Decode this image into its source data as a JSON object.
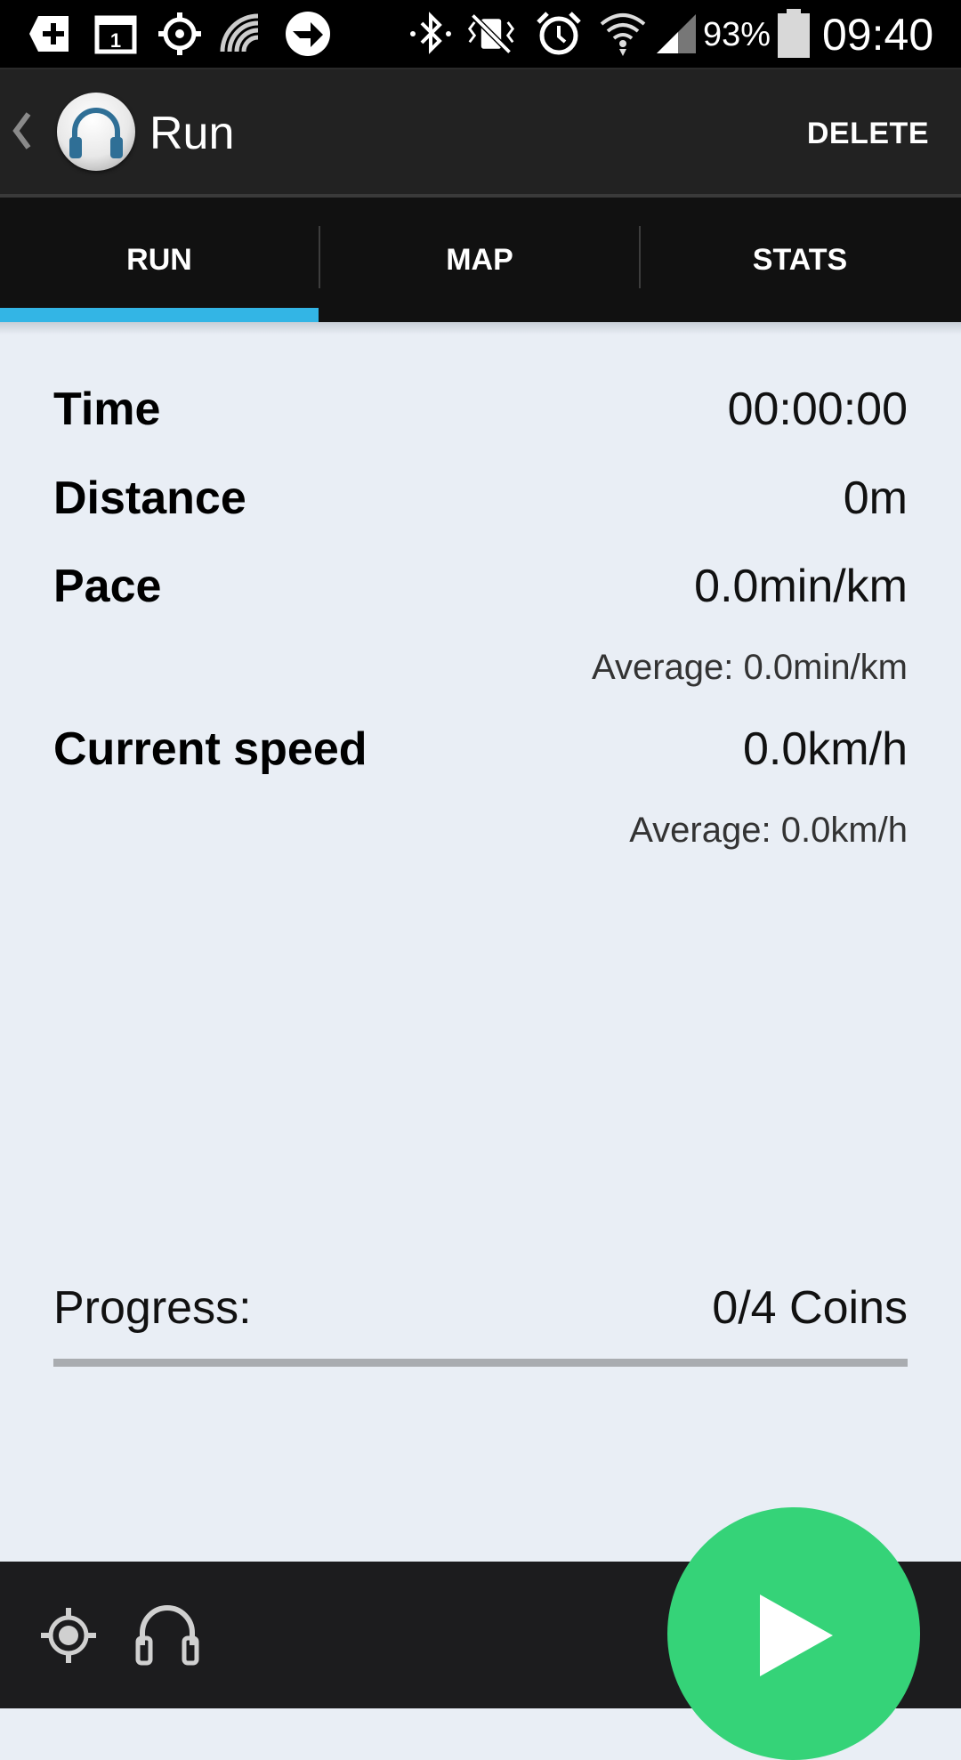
{
  "status_bar": {
    "battery_percent": "93%",
    "time": "09:40",
    "icons_left": [
      "add-box-icon",
      "calendar-1-icon",
      "gps-icon",
      "signal-waves-icon",
      "forward-arrow-icon"
    ],
    "icons_right": [
      "bluetooth-icon",
      "vibrate-mute-icon",
      "alarm-icon",
      "wifi-icon",
      "cell-signal-icon",
      "battery-icon"
    ]
  },
  "action_bar": {
    "title": "Run",
    "delete_label": "DELETE"
  },
  "tabs": [
    {
      "label": "RUN",
      "selected": true
    },
    {
      "label": "MAP",
      "selected": false
    },
    {
      "label": "STATS",
      "selected": false
    }
  ],
  "stats": {
    "time": {
      "label": "Time",
      "value": "00:00:00"
    },
    "distance": {
      "label": "Distance",
      "value": "0m"
    },
    "pace": {
      "label": "Pace",
      "value": "0.0min/km",
      "average": "Average: 0.0min/km"
    },
    "speed": {
      "label": "Current speed",
      "value": "0.0km/h",
      "average": "Average: 0.0km/h"
    }
  },
  "progress": {
    "label": "Progress:",
    "value": "0/4 Coins",
    "fraction": 0
  },
  "bottom_bar": {
    "icons": [
      "locate-icon",
      "headphones-icon",
      "play-icon"
    ]
  },
  "colors": {
    "accent": "#33b5e5",
    "fab": "#35d378",
    "content_bg": "#e9eef5",
    "action_bar_bg": "#222222",
    "tab_bg": "#111111"
  }
}
